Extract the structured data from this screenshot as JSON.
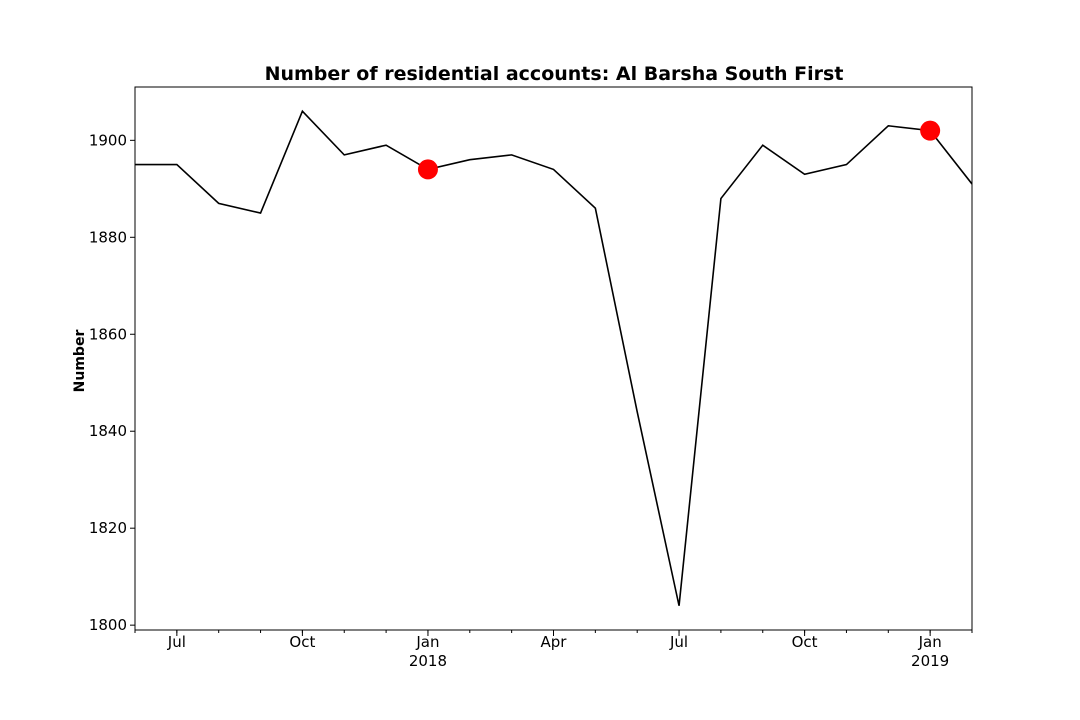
{
  "chart_data": {
    "type": "line",
    "title": "Number of residential accounts: Al Barsha South First",
    "xlabel": "",
    "ylabel": "Number",
    "x": [
      "2017-06",
      "2017-07",
      "2017-08",
      "2017-09",
      "2017-10",
      "2017-11",
      "2017-12",
      "2018-01",
      "2018-02",
      "2018-03",
      "2018-04",
      "2018-05",
      "2018-06",
      "2018-07",
      "2018-08",
      "2018-09",
      "2018-10",
      "2018-11",
      "2018-12",
      "2019-01",
      "2019-02"
    ],
    "series": [
      {
        "values": [
          1895,
          1895,
          1887,
          1885,
          1906,
          1897,
          1899,
          1894,
          1896,
          1897,
          1894,
          1886,
          1844,
          1804,
          1888,
          1899,
          1893,
          1895,
          1903,
          1902,
          1891
        ],
        "color": "#000000"
      }
    ],
    "highlights": [
      {
        "x": "2018-01",
        "y": 1894,
        "color": "#ff0000"
      },
      {
        "x": "2019-01",
        "y": 1902,
        "color": "#ff0000"
      }
    ],
    "xlim": [
      "2017-06",
      "2019-02"
    ],
    "ylim": [
      1799,
      1911
    ],
    "yticks": [
      1800,
      1820,
      1840,
      1860,
      1880,
      1900
    ],
    "xticks": [
      {
        "x": "2017-07",
        "label": "Jul",
        "sublabel": ""
      },
      {
        "x": "2017-10",
        "label": "Oct",
        "sublabel": ""
      },
      {
        "x": "2018-01",
        "label": "Jan",
        "sublabel": "2018"
      },
      {
        "x": "2018-04",
        "label": "Apr",
        "sublabel": ""
      },
      {
        "x": "2018-07",
        "label": "Jul",
        "sublabel": ""
      },
      {
        "x": "2018-10",
        "label": "Oct",
        "sublabel": ""
      },
      {
        "x": "2019-01",
        "label": "Jan",
        "sublabel": "2019"
      }
    ],
    "grid": false
  }
}
